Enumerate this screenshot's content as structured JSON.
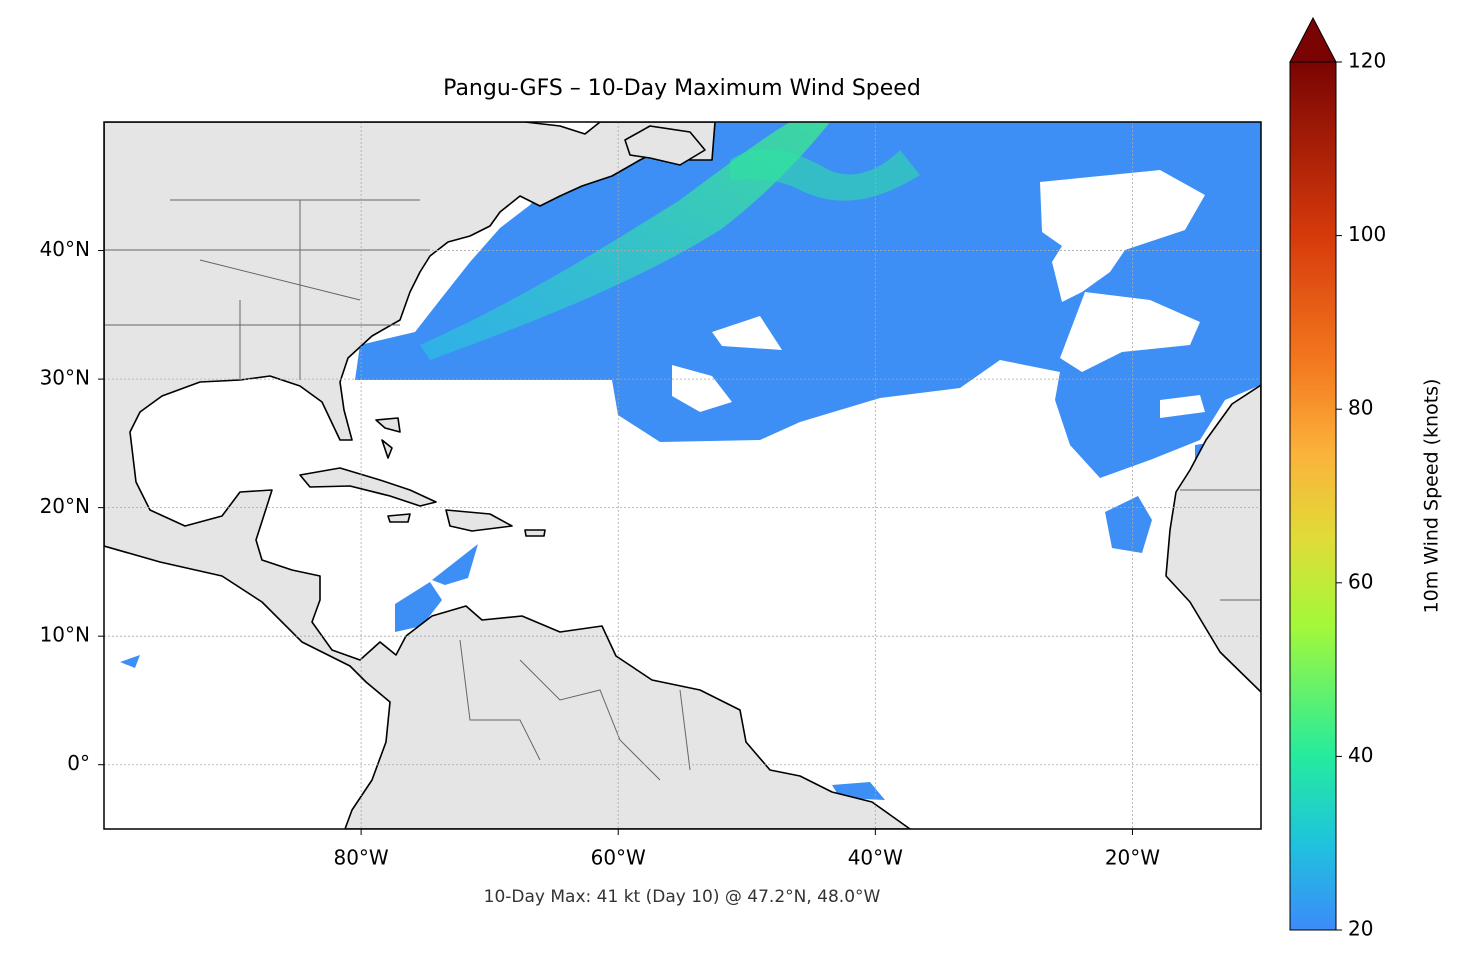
{
  "chart_data": {
    "type": "map",
    "title": "Pangu-GFS – 10-Day Maximum Wind Speed",
    "annotation": "10-Day Max: 41 kt (Day 10) @ 47.2°N, 48.0°W",
    "xlim": [
      -100,
      -10
    ],
    "ylim": [
      -5,
      50
    ],
    "xticks": [
      {
        "value": -80,
        "label": "80°W"
      },
      {
        "value": -60,
        "label": "60°W"
      },
      {
        "value": -40,
        "label": "40°W"
      },
      {
        "value": -20,
        "label": "20°W"
      }
    ],
    "yticks": [
      {
        "value": 0,
        "label": "0°"
      },
      {
        "value": 10,
        "label": "10°N"
      },
      {
        "value": 20,
        "label": "20°N"
      },
      {
        "value": 30,
        "label": "30°N"
      },
      {
        "value": 40,
        "label": "40°N"
      }
    ],
    "grid": true,
    "colorbar": {
      "label": "10m Wind Speed (knots)",
      "lim": [
        20,
        120
      ],
      "ticks": [
        20,
        40,
        60,
        80,
        100,
        120
      ],
      "extend": "max"
    }
  }
}
